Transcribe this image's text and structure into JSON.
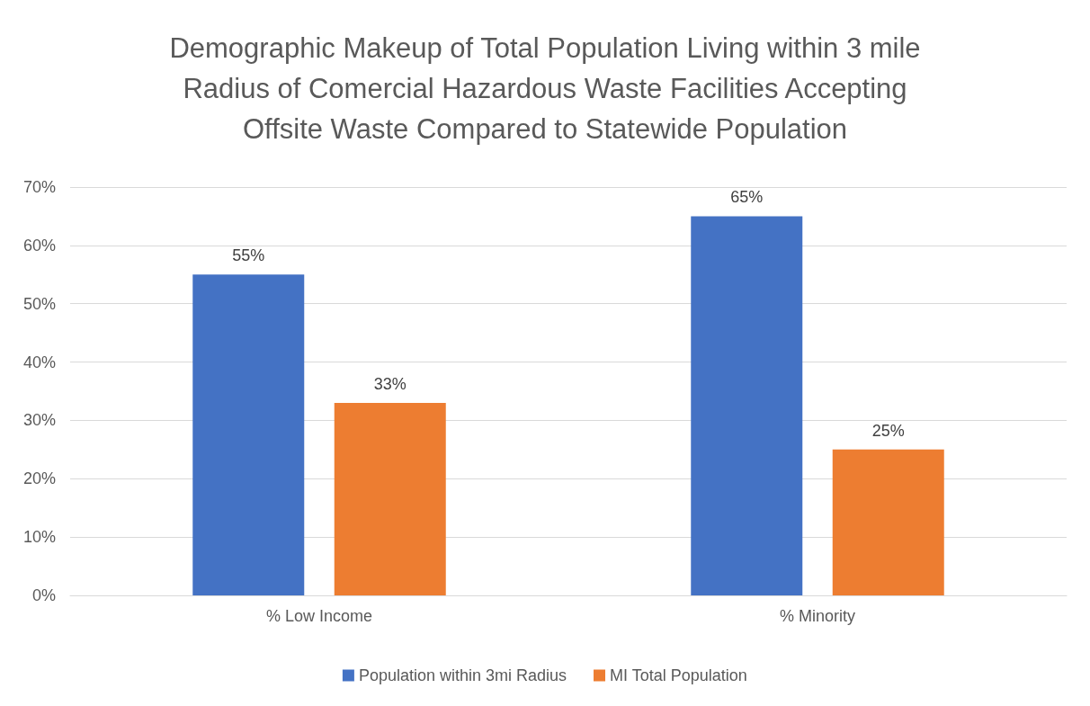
{
  "chart_data": {
    "type": "bar",
    "title": "Demographic Makeup of Total Population Living within 3 mile\nRadius of Comercial Hazardous Waste Facilities Accepting\nOffsite Waste Compared to Statewide Population",
    "categories": [
      "% Low Income",
      "% Minority"
    ],
    "series": [
      {
        "name": "Population within 3mi Radius",
        "color": "#4472c4",
        "values": [
          55,
          65
        ],
        "value_labels": [
          "55%",
          "65%"
        ]
      },
      {
        "name": "MI Total Population",
        "color": "#ed7d31",
        "values": [
          33,
          25
        ],
        "value_labels": [
          "33%",
          "25%"
        ]
      }
    ],
    "ylim": [
      0,
      70
    ],
    "yticks": [
      {
        "value": 0,
        "label": "0%"
      },
      {
        "value": 10,
        "label": "10%"
      },
      {
        "value": 20,
        "label": "20%"
      },
      {
        "value": 30,
        "label": "30%"
      },
      {
        "value": 40,
        "label": "40%"
      },
      {
        "value": 50,
        "label": "50%"
      },
      {
        "value": 60,
        "label": "60%"
      },
      {
        "value": 70,
        "label": "70%"
      }
    ],
    "grid": "y",
    "legend": "bottom"
  }
}
